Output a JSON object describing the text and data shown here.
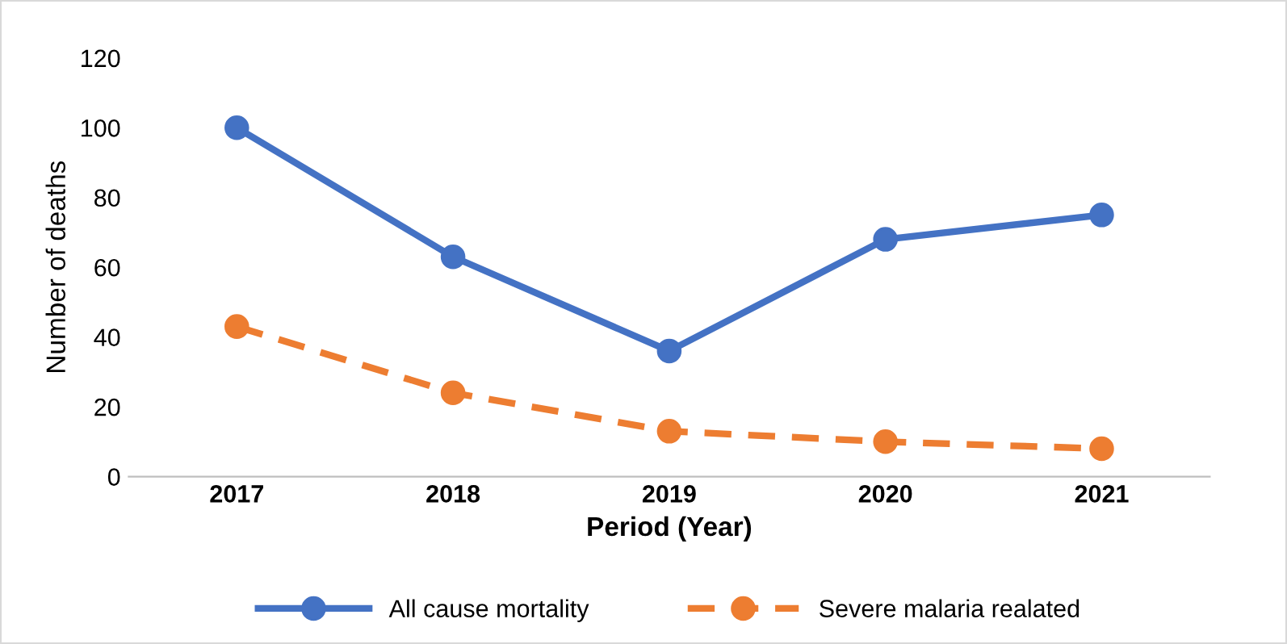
{
  "chart_data": {
    "type": "line",
    "xlabel": "Period (Year)",
    "ylabel": "Number of deaths",
    "categories": [
      "2017",
      "2018",
      "2019",
      "2020",
      "2021"
    ],
    "series": [
      {
        "name": "All cause mortality",
        "color": "#4472c4",
        "values": [
          100,
          63,
          36,
          68,
          75
        ],
        "line_style": "solid"
      },
      {
        "name": "Severe malaria realated",
        "color": "#ed7d31",
        "values": [
          43,
          24,
          13,
          10,
          8
        ],
        "line_style": "dashed"
      }
    ],
    "marker": "circle",
    "ylim": [
      0,
      120
    ],
    "yticks": [
      0,
      20,
      40,
      60,
      80,
      100,
      120
    ],
    "grid": false,
    "legend": "bottom"
  }
}
